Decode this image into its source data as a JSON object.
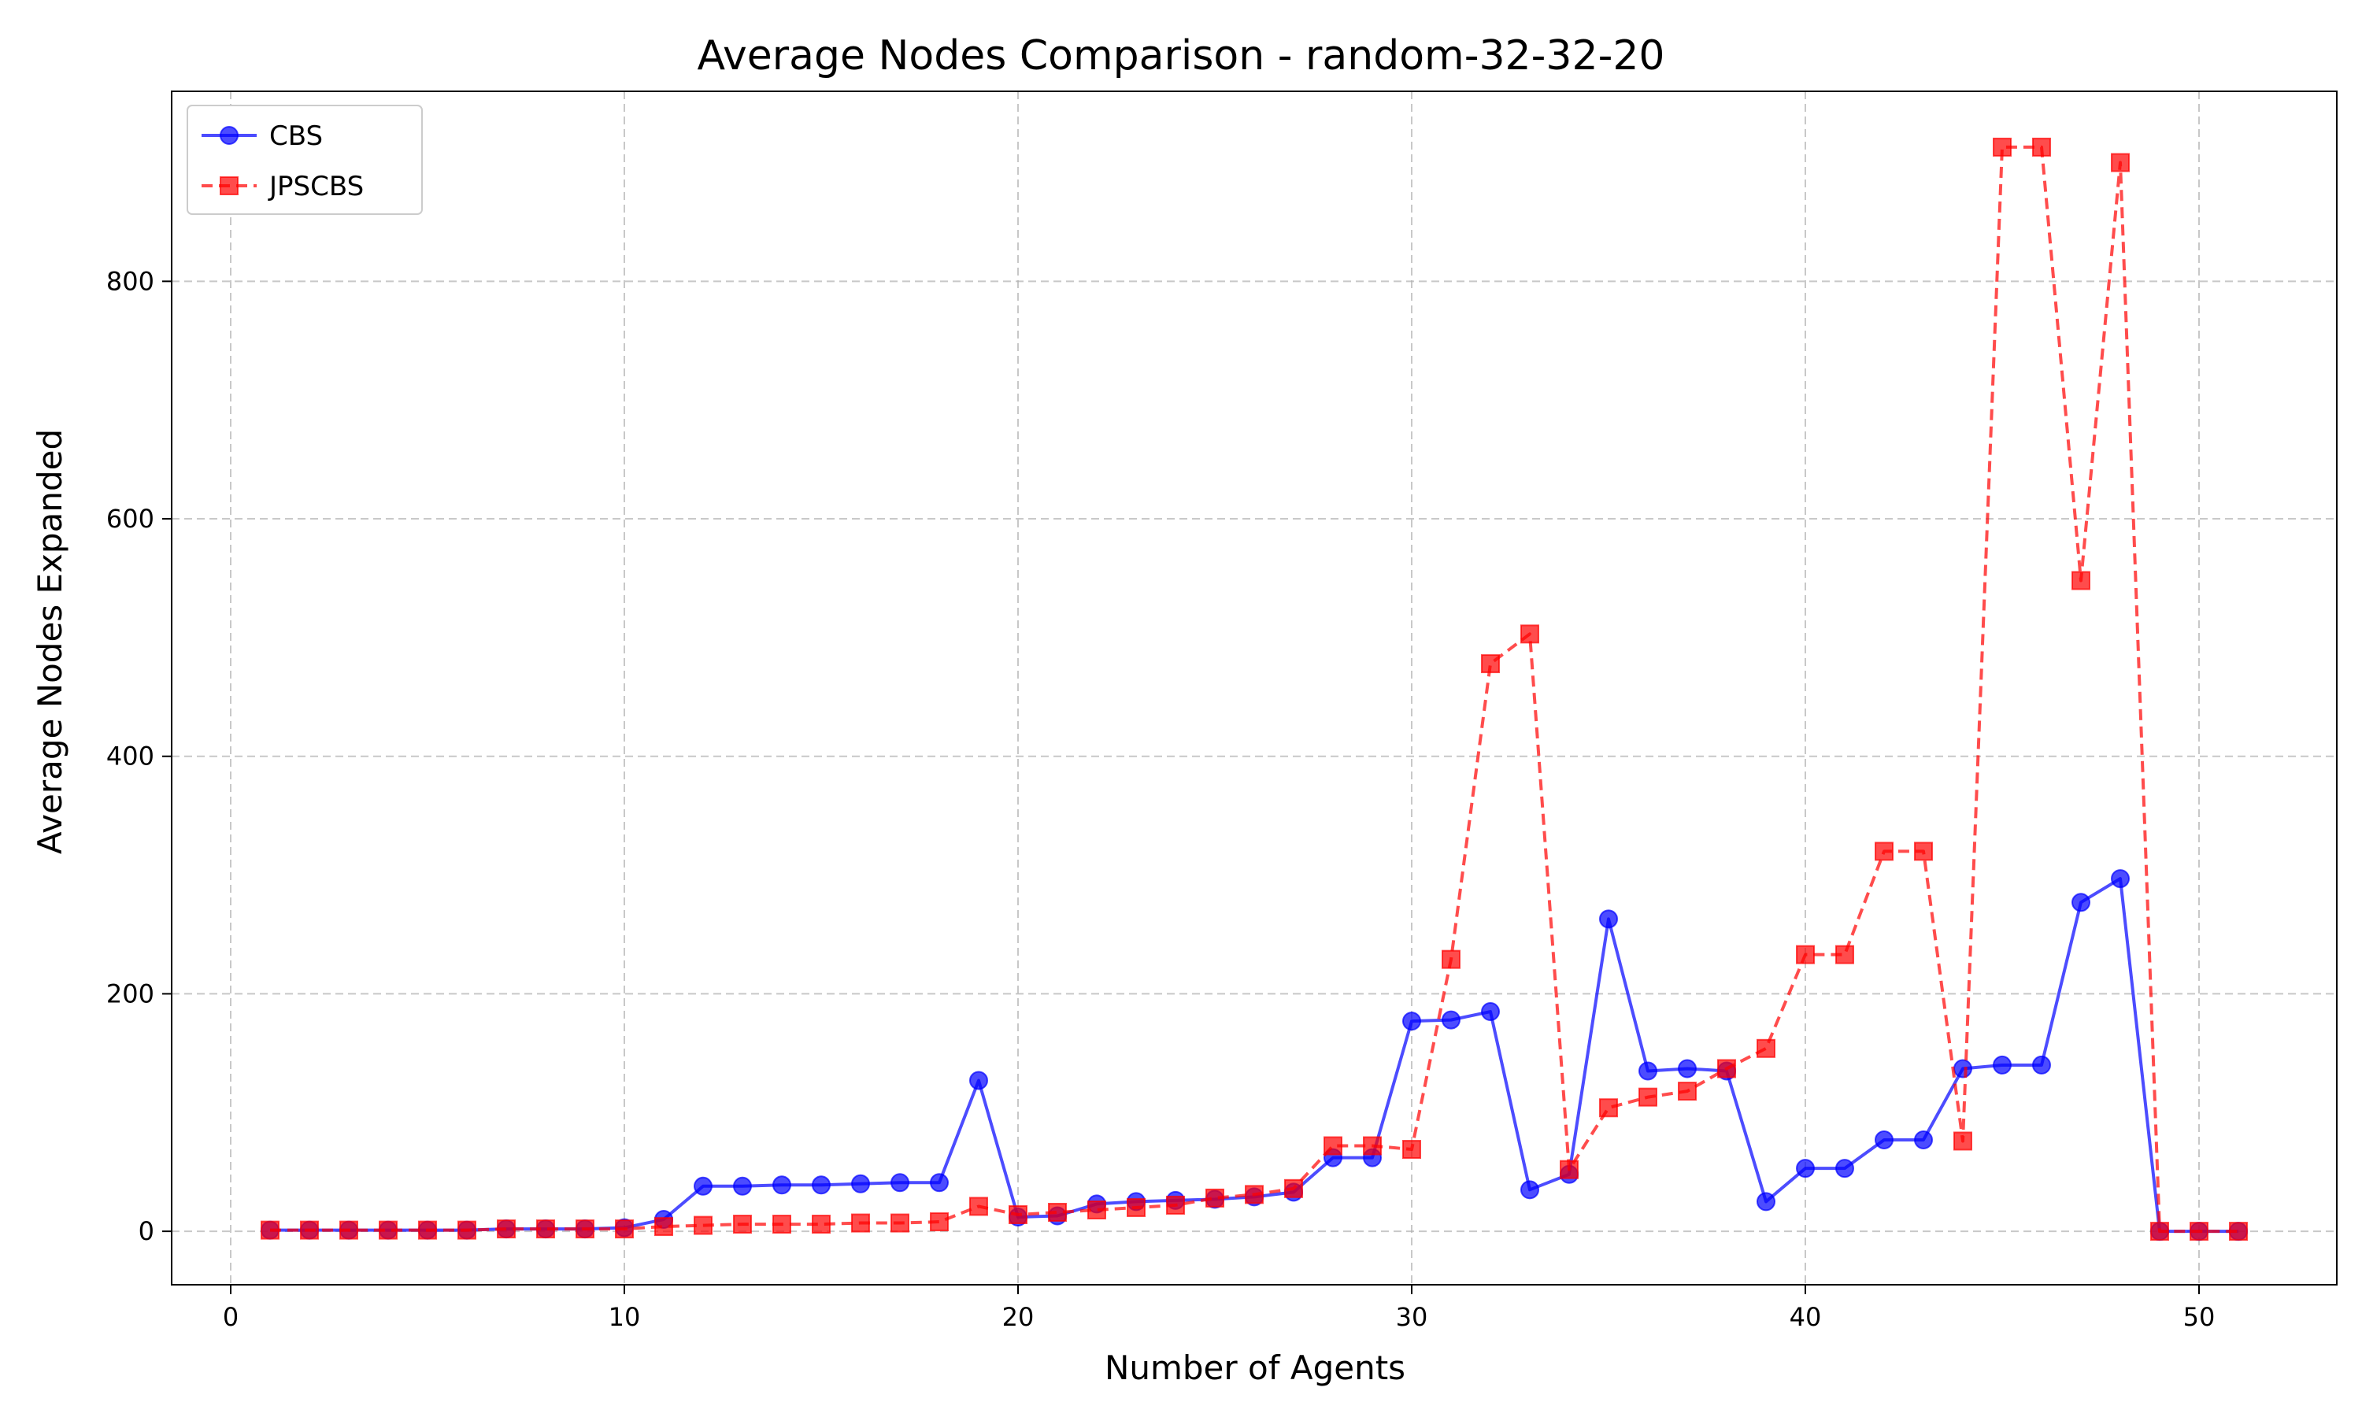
{
  "chart_data": {
    "type": "line",
    "title": "Average Nodes Comparison - random-32-32-20",
    "xlabel": "Number of Agents",
    "ylabel": "Average Nodes Expanded",
    "xlim": [
      -1.5,
      53.5
    ],
    "ylim": [
      -45,
      960
    ],
    "x_ticks": [
      0,
      10,
      20,
      30,
      40,
      50
    ],
    "y_ticks": [
      0,
      200,
      400,
      600,
      800
    ],
    "grid": true,
    "legend_position": "top-left",
    "x": [
      1,
      2,
      3,
      4,
      5,
      6,
      7,
      8,
      9,
      10,
      11,
      12,
      13,
      14,
      15,
      16,
      17,
      18,
      19,
      20,
      21,
      22,
      23,
      24,
      25,
      26,
      27,
      28,
      29,
      30,
      31,
      32,
      33,
      34,
      35,
      36,
      37,
      38,
      39,
      40,
      41,
      42,
      43,
      44,
      45,
      46,
      47,
      48,
      49,
      50,
      51
    ],
    "series": [
      {
        "name": "CBS",
        "color": "#0000ff",
        "marker": "circle",
        "linestyle": "solid",
        "values": [
          1,
          1,
          1,
          1,
          1,
          1,
          2,
          2,
          2,
          3,
          10,
          38,
          38,
          39,
          39,
          40,
          41,
          41,
          127,
          12,
          13,
          23,
          25,
          26,
          27,
          29,
          33,
          62,
          62,
          177,
          178,
          185,
          35,
          48,
          263,
          135,
          137,
          135,
          25,
          53,
          53,
          77,
          77,
          137,
          140,
          140,
          277,
          297,
          0,
          0,
          0
        ]
      },
      {
        "name": "JPSCBS",
        "color": "#ff0000",
        "marker": "square",
        "linestyle": "dashed",
        "values": [
          1,
          1,
          1,
          1,
          1,
          1,
          2,
          2,
          2,
          2,
          4,
          5,
          6,
          6,
          6,
          7,
          7,
          8,
          21,
          14,
          16,
          18,
          20,
          22,
          28,
          31,
          36,
          72,
          72,
          69,
          229,
          478,
          503,
          52,
          104,
          113,
          118,
          137,
          154,
          233,
          233,
          320,
          320,
          76,
          913,
          913,
          548,
          900,
          0,
          0,
          0
        ]
      }
    ]
  }
}
